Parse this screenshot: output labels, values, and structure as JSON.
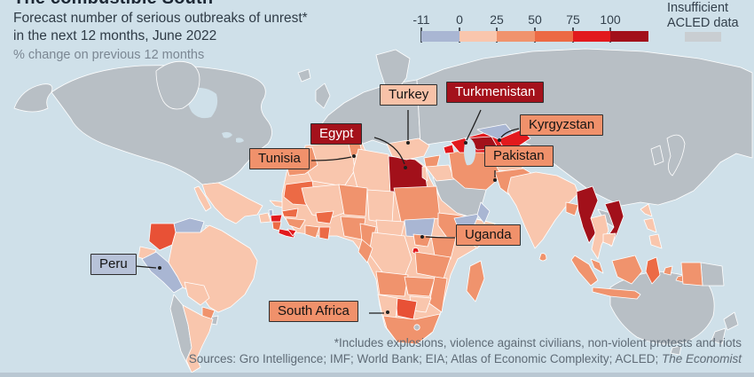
{
  "header": {
    "title": "The combustible South",
    "subtitle": "Forecast number of serious outbreaks of unrest* in the next 12 months, June 2022",
    "note": "% change on previous 12 months"
  },
  "legend": {
    "ticks": [
      "-11",
      "0",
      "25",
      "50",
      "75",
      "100"
    ],
    "colors": [
      "#a9b6d3",
      "#f9c6ad",
      "#f0936d",
      "#ec6a45",
      "#e2191d",
      "#a2101a"
    ],
    "insufficient_line1": "Insufficient",
    "insufficient_line2": "ACLED data",
    "insufficient_color": "#c9ced2"
  },
  "map": {
    "ocean_color": "#cfe0e9",
    "no_data_color": "#b8bfc5",
    "labels": [
      {
        "text": "Turkey",
        "style": "peach"
      },
      {
        "text": "Turkmenistan",
        "style": "darkred"
      },
      {
        "text": "Kyrgyzstan",
        "style": "salmon"
      },
      {
        "text": "Pakistan",
        "style": "salmon"
      },
      {
        "text": "Egypt",
        "style": "darkred"
      },
      {
        "text": "Tunisia",
        "style": "salmon"
      },
      {
        "text": "Uganda",
        "style": "salmon"
      },
      {
        "text": "Peru",
        "style": "blue"
      },
      {
        "text": "South Africa",
        "style": "salmon"
      }
    ]
  },
  "footer": {
    "footnote": "*Includes explosions, violence against civilians, non-violent protests and riots",
    "sources_prefix": "Sources: Gro Intelligence; IMF; World Bank; EIA; Atlas of Economic Complexity; ACLED; ",
    "sources_italic": "The Economist"
  }
}
